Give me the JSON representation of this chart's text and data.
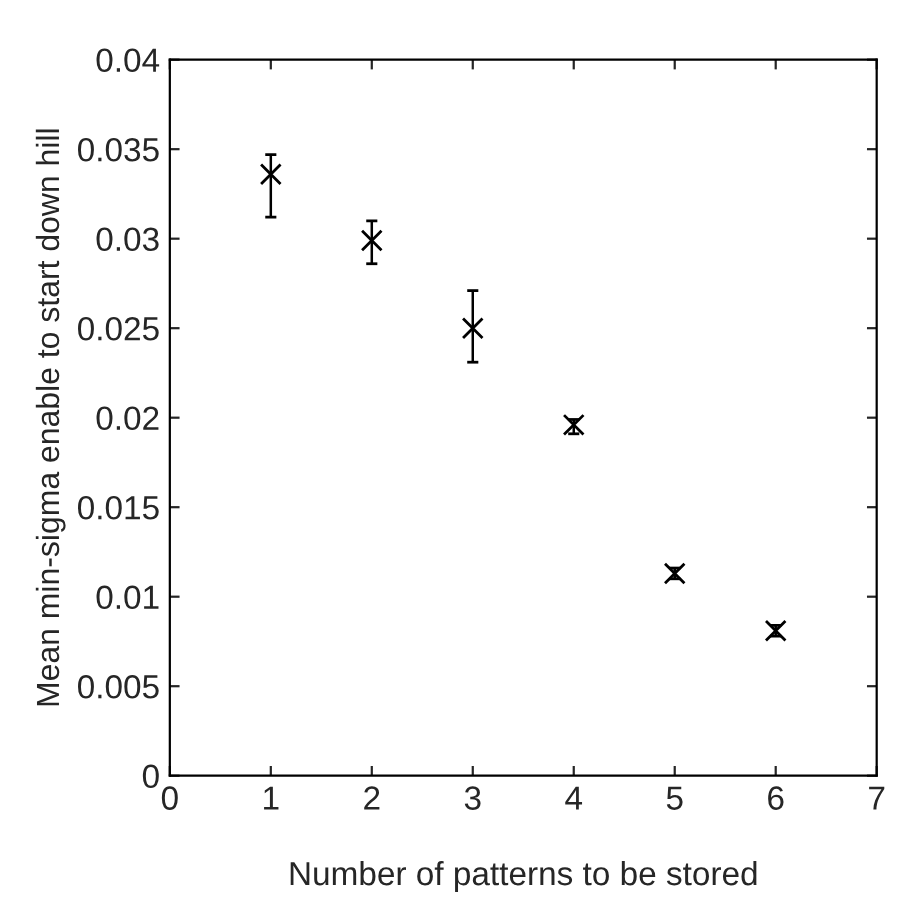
{
  "chart_data": {
    "type": "scatter",
    "xlabel": "Number of patterns to be stored",
    "ylabel": "Mean min-sigma enable to start down hill",
    "x": [
      1,
      2,
      3,
      4,
      5,
      6
    ],
    "series": [
      {
        "color": "#000000",
        "values": [
          0.0336,
          0.0299,
          0.025,
          0.0196,
          0.0113,
          0.0081
        ],
        "errors": [
          [
            0.0312,
            0.0347
          ],
          [
            0.0286,
            0.031
          ],
          [
            0.0231,
            0.0271
          ],
          [
            0.0191,
            0.0199
          ],
          [
            0.011,
            0.0116
          ],
          [
            0.0078,
            0.0084
          ]
        ]
      }
    ],
    "marker": "cross",
    "xlim": [
      0,
      7
    ],
    "ylim": [
      0,
      0.04
    ],
    "xticks": [
      0,
      1,
      2,
      3,
      4,
      5,
      6,
      7
    ],
    "yticks": [
      0,
      0.005,
      0.01,
      0.015,
      0.02,
      0.025,
      0.03,
      0.035,
      0.04
    ],
    "grid": false
  }
}
